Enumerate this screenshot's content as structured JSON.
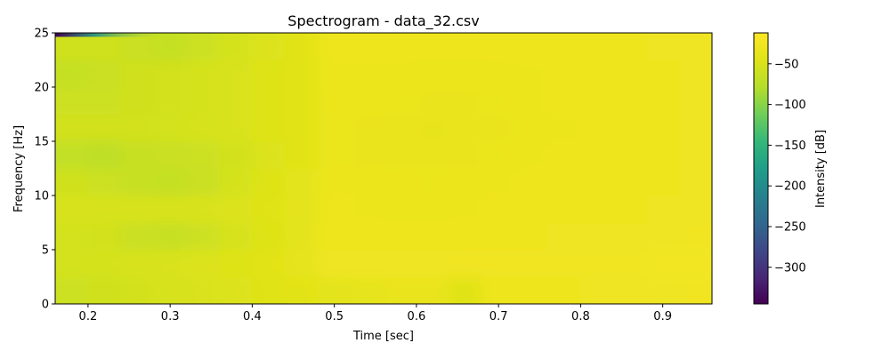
{
  "chart_data": {
    "type": "heatmap",
    "title": "Spectrogram - data_32.csv",
    "xlabel": "Time [sec]",
    "ylabel": "Frequency [Hz]",
    "xlim": [
      0.16,
      0.96
    ],
    "ylim": [
      0,
      25
    ],
    "x_ticks": [
      {
        "value": 0.2,
        "label": "0.2"
      },
      {
        "value": 0.3,
        "label": "0.3"
      },
      {
        "value": 0.4,
        "label": "0.4"
      },
      {
        "value": 0.5,
        "label": "0.5"
      },
      {
        "value": 0.6,
        "label": "0.6"
      },
      {
        "value": 0.7,
        "label": "0.7"
      },
      {
        "value": 0.8,
        "label": "0.8"
      },
      {
        "value": 0.9,
        "label": "0.9"
      }
    ],
    "y_ticks": [
      {
        "value": 0,
        "label": "0"
      },
      {
        "value": 5,
        "label": "5"
      },
      {
        "value": 10,
        "label": "10"
      },
      {
        "value": 15,
        "label": "15"
      },
      {
        "value": 20,
        "label": "20"
      },
      {
        "value": 25,
        "label": "25"
      }
    ],
    "colormap": "viridis",
    "colorbar": {
      "label": "Intensity [dB]",
      "range": [
        -345,
        -12
      ],
      "ticks": [
        {
          "value": -50,
          "label": "−50"
        },
        {
          "value": -100,
          "label": "−100"
        },
        {
          "value": -150,
          "label": "−150"
        },
        {
          "value": -200,
          "label": "−200"
        },
        {
          "value": -250,
          "label": "−250"
        },
        {
          "value": -300,
          "label": "−300"
        }
      ]
    },
    "grid": false,
    "time_bins": [
      0.18,
      0.22,
      0.26,
      0.3,
      0.34,
      0.38,
      0.42,
      0.46,
      0.5,
      0.54,
      0.58,
      0.62,
      0.66,
      0.7,
      0.74,
      0.78,
      0.82,
      0.86,
      0.9,
      0.94
    ],
    "freq_bins": [
      1.25,
      3.75,
      6.25,
      8.75,
      11.25,
      13.75,
      16.25,
      18.75,
      21.25,
      23.75
    ],
    "intensity_db": [
      [
        -60,
        -58,
        -56,
        -52,
        -50,
        -48,
        -44,
        -42,
        -40,
        -37,
        -34,
        -34,
        -44,
        -28,
        -27,
        -27,
        -26,
        -26,
        -26,
        -25
      ],
      [
        -55,
        -54,
        -52,
        -50,
        -48,
        -46,
        -42,
        -38,
        -26,
        -26,
        -26,
        -26,
        -25,
        -25,
        -25,
        -25,
        -25,
        -25,
        -24,
        -24
      ],
      [
        -55,
        -56,
        -62,
        -64,
        -60,
        -52,
        -46,
        -40,
        -28,
        -28,
        -28,
        -28,
        -27,
        -27,
        -27,
        -26,
        -26,
        -26,
        -26,
        -25
      ],
      [
        -52,
        -52,
        -52,
        -52,
        -50,
        -48,
        -44,
        -40,
        -29,
        -30,
        -31,
        -31,
        -30,
        -29,
        -28,
        -28,
        -27,
        -27,
        -26,
        -26
      ],
      [
        -58,
        -60,
        -64,
        -66,
        -62,
        -54,
        -46,
        -40,
        -30,
        -30,
        -31,
        -32,
        -31,
        -30,
        -29,
        -28,
        -28,
        -27,
        -27,
        -26
      ],
      [
        -68,
        -72,
        -64,
        -62,
        -60,
        -56,
        -48,
        -42,
        -32,
        -33,
        -34,
        -34,
        -33,
        -32,
        -30,
        -29,
        -28,
        -28,
        -27,
        -26
      ],
      [
        -56,
        -56,
        -56,
        -55,
        -53,
        -50,
        -46,
        -42,
        -32,
        -33,
        -34,
        -35,
        -34,
        -33,
        -31,
        -30,
        -29,
        -28,
        -27,
        -26
      ],
      [
        -60,
        -60,
        -58,
        -56,
        -54,
        -50,
        -46,
        -42,
        -31,
        -31,
        -32,
        -33,
        -33,
        -32,
        -30,
        -29,
        -28,
        -28,
        -27,
        -26
      ],
      [
        -66,
        -62,
        -58,
        -56,
        -54,
        -50,
        -46,
        -42,
        -30,
        -30,
        -30,
        -31,
        -31,
        -31,
        -30,
        -29,
        -28,
        -28,
        -27,
        -26
      ],
      [
        -58,
        -58,
        -62,
        -66,
        -60,
        -54,
        -48,
        -42,
        -29,
        -29,
        -29,
        -29,
        -29,
        -28,
        -28,
        -28,
        -27,
        -27,
        -26,
        -26
      ]
    ],
    "top_edge_band": {
      "freq": 24.8,
      "t_end": 0.3,
      "min_db": -345
    }
  }
}
